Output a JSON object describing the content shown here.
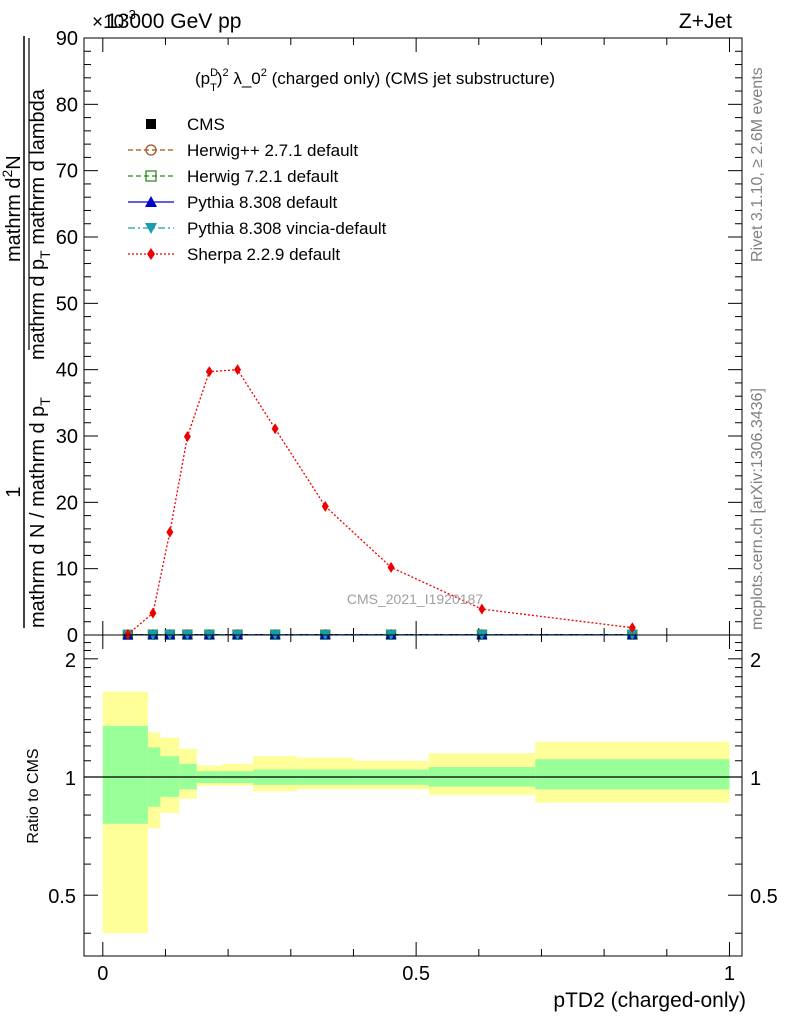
{
  "header": {
    "energy_label": "13000 GeV pp",
    "process_label": "Z+Jet",
    "exponent_label": "×10",
    "exponent_power": "-3"
  },
  "side_labels": {
    "rivet": "Rivet 3.1.10, ≥ 2.6M events",
    "mcplots": "mcplots.cern.ch [arXiv:1306.3436]"
  },
  "watermark": "CMS_2021_I1920187",
  "chart_data": [
    {
      "type": "line",
      "title_parts": {
        "p": "(p",
        "sup_d": "D",
        "sub_t": "T",
        "close": ")",
        "sup2": "2",
        "lambda": " λ_0",
        "sup2b": "2",
        "rest": " (charged only) (CMS jet substructure)"
      },
      "ylabel_parts": {
        "numerator": "1",
        "denominator": "mathrm d N / mathrm d p",
        "denominator_sub": "T",
        "second_numerator_a": "mathrm d",
        "second_numerator_sup": "2",
        "second_numerator_b": "N",
        "second_denominator_a": "mathrm d p",
        "second_denominator_sub": "T",
        "second_denominator_b": " mathrm d lambda"
      },
      "xlim": [
        -0.03,
        1.02
      ],
      "ylim": [
        0,
        90
      ],
      "yticks": [
        "0",
        "10",
        "20",
        "30",
        "40",
        "50",
        "60",
        "70",
        "80",
        "90"
      ],
      "legend_position": "top-left",
      "series": [
        {
          "name": "CMS",
          "marker": "square",
          "color": "#000000",
          "style": "none",
          "x": [
            0.04,
            0.08,
            0.107,
            0.135,
            0.17,
            0.215,
            0.275,
            0.355,
            0.46,
            0.605,
            0.845
          ],
          "y": [
            0.03,
            0.05,
            0.05,
            0.05,
            0.05,
            0.05,
            0.05,
            0.05,
            0.05,
            0.05,
            0.05
          ]
        },
        {
          "name": "Herwig++ 2.7.1 default",
          "marker": "circle-open",
          "color": "#a0521a",
          "style": "dashed",
          "x": [
            0.04,
            0.08,
            0.107,
            0.135,
            0.17,
            0.215,
            0.275,
            0.355,
            0.46,
            0.605,
            0.845
          ],
          "y": [
            0.03,
            0.05,
            0.05,
            0.05,
            0.05,
            0.05,
            0.05,
            0.05,
            0.05,
            0.05,
            0.05
          ]
        },
        {
          "name": "Herwig 7.2.1 default",
          "marker": "square-open",
          "color": "#2e8b20",
          "style": "dashed",
          "x": [
            0.04,
            0.08,
            0.107,
            0.135,
            0.17,
            0.215,
            0.275,
            0.355,
            0.46,
            0.605,
            0.845
          ],
          "y": [
            0.03,
            0.05,
            0.05,
            0.05,
            0.05,
            0.05,
            0.05,
            0.05,
            0.05,
            0.05,
            0.05
          ]
        },
        {
          "name": "Pythia 8.308 default",
          "marker": "triangle-up",
          "color": "#0000cc",
          "style": "solid",
          "x": [
            0.04,
            0.08,
            0.107,
            0.135,
            0.17,
            0.215,
            0.275,
            0.355,
            0.46,
            0.605,
            0.845
          ],
          "y": [
            0.03,
            0.05,
            0.05,
            0.05,
            0.05,
            0.05,
            0.05,
            0.05,
            0.05,
            0.05,
            0.05
          ]
        },
        {
          "name": "Pythia 8.308 vincia-default",
          "marker": "triangle-down",
          "color": "#1a9bb0",
          "style": "dashdot",
          "x": [
            0.04,
            0.08,
            0.107,
            0.135,
            0.17,
            0.215,
            0.275,
            0.355,
            0.46,
            0.605,
            0.845
          ],
          "y": [
            0.03,
            0.05,
            0.05,
            0.05,
            0.05,
            0.05,
            0.05,
            0.05,
            0.05,
            0.05,
            0.05
          ]
        },
        {
          "name": "Sherpa 2.2.9 default",
          "marker": "diamond",
          "color": "#ee0000",
          "style": "dotted",
          "x": [
            0.04,
            0.08,
            0.107,
            0.135,
            0.17,
            0.215,
            0.275,
            0.355,
            0.46,
            0.605,
            0.845
          ],
          "y": [
            0.1,
            3.3,
            15.5,
            29.9,
            39.7,
            40.0,
            31.1,
            19.4,
            10.2,
            3.9,
            1.1
          ]
        }
      ]
    },
    {
      "type": "area",
      "ylabel": "Ratio to CMS",
      "xlabel": "pTD2 (charged-only)",
      "xlim": [
        -0.03,
        1.02
      ],
      "ylim": [
        0.35,
        2.3
      ],
      "xticks": [
        "0",
        "0.5",
        "1"
      ],
      "yticks": [
        "0.5",
        "1",
        "2"
      ],
      "reference_line": 1,
      "bins": [
        {
          "xlo": 0.0,
          "xhi": 0.072,
          "stat_lo": 0.76,
          "stat_hi": 1.35,
          "tot_lo": 0.4,
          "tot_hi": 1.65
        },
        {
          "xlo": 0.072,
          "xhi": 0.092,
          "stat_lo": 0.84,
          "stat_hi": 1.19,
          "tot_lo": 0.74,
          "tot_hi": 1.3
        },
        {
          "xlo": 0.092,
          "xhi": 0.122,
          "stat_lo": 0.89,
          "stat_hi": 1.13,
          "tot_lo": 0.81,
          "tot_hi": 1.26
        },
        {
          "xlo": 0.122,
          "xhi": 0.15,
          "stat_lo": 0.93,
          "stat_hi": 1.08,
          "tot_lo": 0.88,
          "tot_hi": 1.18
        },
        {
          "xlo": 0.15,
          "xhi": 0.19,
          "stat_lo": 0.965,
          "stat_hi": 1.035,
          "tot_lo": 0.95,
          "tot_hi": 1.07
        },
        {
          "xlo": 0.19,
          "xhi": 0.24,
          "stat_lo": 0.965,
          "stat_hi": 1.035,
          "tot_lo": 0.95,
          "tot_hi": 1.08
        },
        {
          "xlo": 0.24,
          "xhi": 0.31,
          "stat_lo": 0.955,
          "stat_hi": 1.045,
          "tot_lo": 0.92,
          "tot_hi": 1.13
        },
        {
          "xlo": 0.31,
          "xhi": 0.4,
          "stat_lo": 0.955,
          "stat_hi": 1.045,
          "tot_lo": 0.93,
          "tot_hi": 1.12
        },
        {
          "xlo": 0.4,
          "xhi": 0.52,
          "stat_lo": 0.955,
          "stat_hi": 1.045,
          "tot_lo": 0.93,
          "tot_hi": 1.1
        },
        {
          "xlo": 0.52,
          "xhi": 0.69,
          "stat_lo": 0.945,
          "stat_hi": 1.06,
          "tot_lo": 0.9,
          "tot_hi": 1.15
        },
        {
          "xlo": 0.69,
          "xhi": 1.0,
          "stat_lo": 0.93,
          "stat_hi": 1.11,
          "tot_lo": 0.86,
          "tot_hi": 1.23
        }
      ]
    }
  ]
}
